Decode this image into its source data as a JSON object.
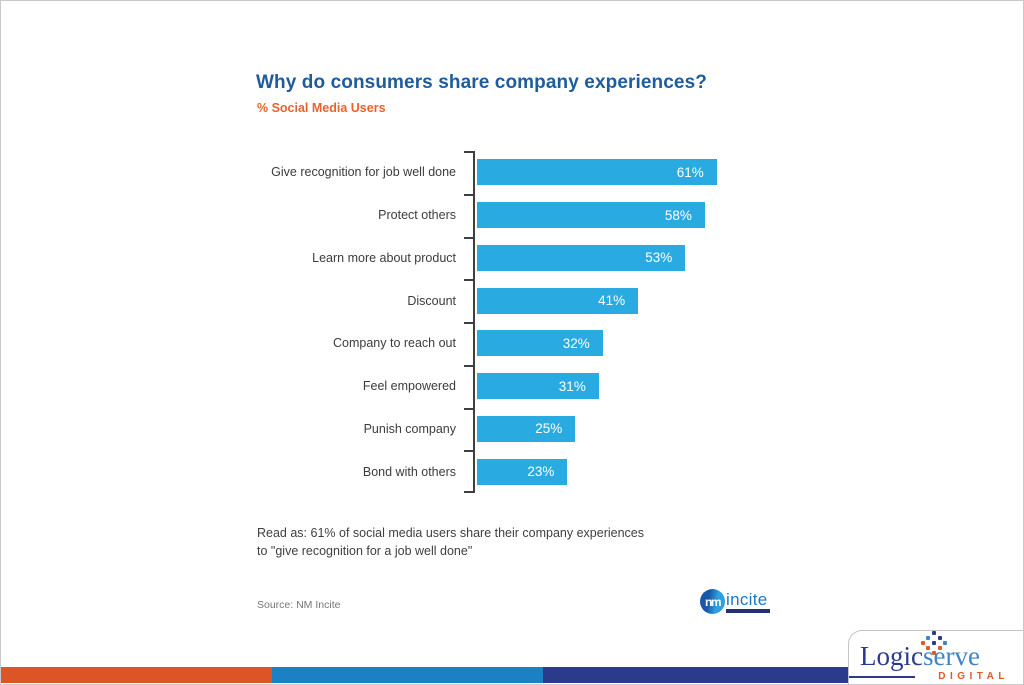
{
  "page": {
    "note_line1": "Read as: 61% of social media users share their company experiences",
    "note_line2": "to \"give recognition for a job well done\"",
    "source": "Source: NM Incite"
  },
  "chart_data": {
    "type": "bar",
    "orientation": "horizontal",
    "title": "Why do consumers share company experiences?",
    "subtitle": "% Social Media Users",
    "categories": [
      "Give recognition for job well done",
      "Protect others",
      "Learn more about product",
      "Discount",
      "Company to reach out",
      "Feel empowered",
      "Punish company",
      "Bond with others"
    ],
    "values": [
      61,
      58,
      53,
      41,
      32,
      31,
      25,
      23
    ],
    "value_labels": [
      "61%",
      "58%",
      "53%",
      "41%",
      "32%",
      "31%",
      "25%",
      "23%"
    ],
    "xlabel": "",
    "ylabel": "",
    "xlim": [
      0,
      65
    ],
    "grid": false,
    "legend": false,
    "bar_color": "#29abe2",
    "value_label_color": "#ffffff",
    "value_label_position": "inside-end"
  },
  "branding": {
    "nm_incite": {
      "mark": "nm",
      "wordmark": "incite"
    },
    "logicserve": {
      "name_primary": "Logic",
      "name_secondary": "serve",
      "tagline": "DIGITAL",
      "color_primary": "#2b3a8c",
      "color_secondary": "#3e85c4",
      "color_tagline": "#e0592a"
    }
  },
  "footer_bar": {
    "colors": [
      "#db5526",
      "#1b80c4",
      "#2b3a8c"
    ]
  }
}
